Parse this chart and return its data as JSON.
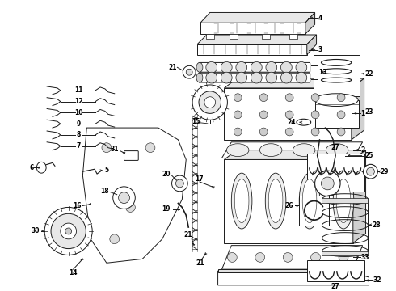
{
  "bg_color": "#ffffff",
  "lc": "#1a1a1a",
  "figsize": [
    4.9,
    3.6
  ],
  "dpi": 100,
  "label_fs": 5.5,
  "lw": 0.7
}
